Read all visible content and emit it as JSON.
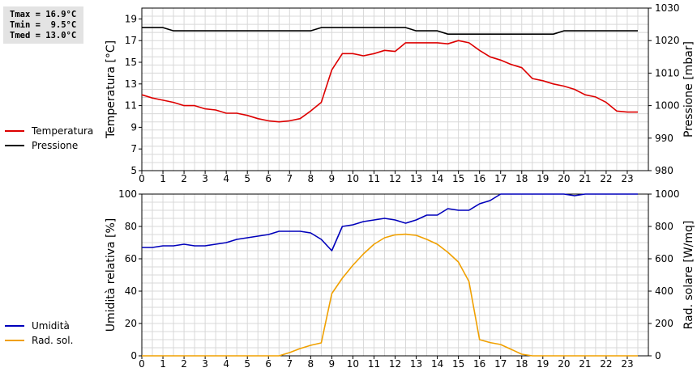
{
  "stats": {
    "tmax": "Tmax = 16.9°C",
    "tmin": "Tmin =  9.5°C",
    "tmed": "Tmed = 13.0°C"
  },
  "legend_top": {
    "temperatura": "Temperatura",
    "pressione": "Pressione"
  },
  "legend_bottom": {
    "umidita": "Umidità",
    "rad_sol": "Rad. sol."
  },
  "colors": {
    "temperatura": "#dd0000",
    "pressione": "#000000",
    "umidita": "#0000bb",
    "rad_sol": "#f0a000",
    "grid": "#d8d8d8"
  },
  "chart_data": [
    {
      "type": "line",
      "x_label_ticks": [
        "0",
        "1",
        "2",
        "3",
        "4",
        "5",
        "6",
        "7",
        "8",
        "9",
        "10",
        "11",
        "12",
        "13",
        "14",
        "15",
        "16",
        "17",
        "18",
        "19",
        "20",
        "21",
        "22",
        "23"
      ],
      "xlim": [
        0,
        24
      ],
      "ylabel_left": "Temperatura [°C]",
      "ylim_left": [
        5,
        20
      ],
      "yticks_left": [
        5,
        7,
        9,
        11,
        13,
        15,
        17,
        19
      ],
      "ylabel_right": "Pressione [mbar]",
      "ylim_right": [
        980,
        1030
      ],
      "yticks_right": [
        980,
        990,
        1000,
        1010,
        1020,
        1030
      ],
      "grid": true,
      "series": [
        {
          "name": "Temperatura",
          "axis": "left",
          "x": [
            0,
            0.5,
            1,
            1.5,
            2,
            2.5,
            3,
            3.5,
            4,
            4.5,
            5,
            5.5,
            6,
            6.5,
            7,
            7.5,
            8,
            8.5,
            9,
            9.5,
            10,
            10.5,
            11,
            11.5,
            12,
            12.5,
            13,
            13.5,
            14,
            14.5,
            15,
            15.5,
            16,
            16.5,
            17,
            17.5,
            18,
            18.5,
            19,
            19.5,
            20,
            20.5,
            21,
            21.5,
            22,
            22.5,
            23,
            23.5
          ],
          "y": [
            12.0,
            11.7,
            11.5,
            11.3,
            11.0,
            11.0,
            10.7,
            10.6,
            10.3,
            10.3,
            10.1,
            9.8,
            9.6,
            9.5,
            9.6,
            9.8,
            10.5,
            11.3,
            14.3,
            15.8,
            15.8,
            15.6,
            15.8,
            16.1,
            16.0,
            16.8,
            16.8,
            16.8,
            16.8,
            16.7,
            17.0,
            16.8,
            16.1,
            15.5,
            15.2,
            14.8,
            14.5,
            13.5,
            13.3,
            13.0,
            12.8,
            12.5,
            12.0,
            11.8,
            11.3,
            10.5,
            10.4,
            10.4
          ]
        },
        {
          "name": "Pressione",
          "axis": "right",
          "x": [
            0,
            1,
            1.5,
            8,
            8.5,
            12.5,
            13,
            14,
            14.5,
            19.5,
            20,
            23.5
          ],
          "y": [
            1024,
            1024,
            1023,
            1023,
            1024,
            1024,
            1023,
            1023,
            1022,
            1022,
            1023,
            1023
          ]
        }
      ]
    },
    {
      "type": "line",
      "x_label_ticks": [
        "0",
        "1",
        "2",
        "3",
        "4",
        "5",
        "6",
        "7",
        "8",
        "9",
        "10",
        "11",
        "12",
        "13",
        "14",
        "15",
        "16",
        "17",
        "18",
        "19",
        "20",
        "21",
        "22",
        "23"
      ],
      "xlim": [
        0,
        24
      ],
      "ylabel_left": "Umidità relativa [%]",
      "ylim_left": [
        0,
        100
      ],
      "yticks_left": [
        0,
        20,
        40,
        60,
        80,
        100
      ],
      "ylabel_right": "Rad. solare [W/mq]",
      "ylim_right": [
        0,
        1000
      ],
      "yticks_right": [
        0,
        200,
        400,
        600,
        800,
        1000
      ],
      "grid": true,
      "series": [
        {
          "name": "Umidità",
          "axis": "left",
          "x": [
            0,
            0.5,
            1,
            1.5,
            2,
            2.5,
            3,
            3.5,
            4,
            4.5,
            5,
            5.5,
            6,
            6.5,
            7,
            7.5,
            8,
            8.5,
            9,
            9.5,
            10,
            10.5,
            11,
            11.5,
            12,
            12.5,
            13,
            13.5,
            14,
            14.5,
            15,
            15.5,
            16,
            16.5,
            17,
            17.5,
            18,
            18.5,
            19,
            19.5,
            20,
            20.5,
            21,
            21.5,
            22,
            22.5,
            23,
            23.5
          ],
          "y": [
            67,
            67,
            68,
            68,
            69,
            68,
            68,
            69,
            70,
            72,
            73,
            74,
            75,
            77,
            77,
            77,
            76,
            72,
            65,
            80,
            81,
            83,
            84,
            85,
            84,
            82,
            84,
            87,
            87,
            91,
            90,
            90,
            94,
            96,
            100,
            100,
            100,
            100,
            100,
            100,
            100,
            99,
            100,
            100,
            100,
            100,
            100,
            100
          ]
        },
        {
          "name": "Rad. sol.",
          "axis": "right",
          "x": [
            0,
            6,
            6.5,
            7,
            7.5,
            8,
            8.5,
            9,
            9.5,
            10,
            10.5,
            11,
            11.5,
            12,
            12.5,
            13,
            13.5,
            14,
            14.5,
            15,
            15.5,
            16,
            16.5,
            17,
            17.5,
            18,
            18.5,
            23.5
          ],
          "y": [
            0,
            0,
            0,
            20,
            45,
            65,
            80,
            385,
            480,
            560,
            630,
            690,
            730,
            748,
            752,
            745,
            720,
            690,
            640,
            580,
            460,
            100,
            82,
            70,
            40,
            10,
            0,
            0
          ]
        }
      ]
    }
  ]
}
